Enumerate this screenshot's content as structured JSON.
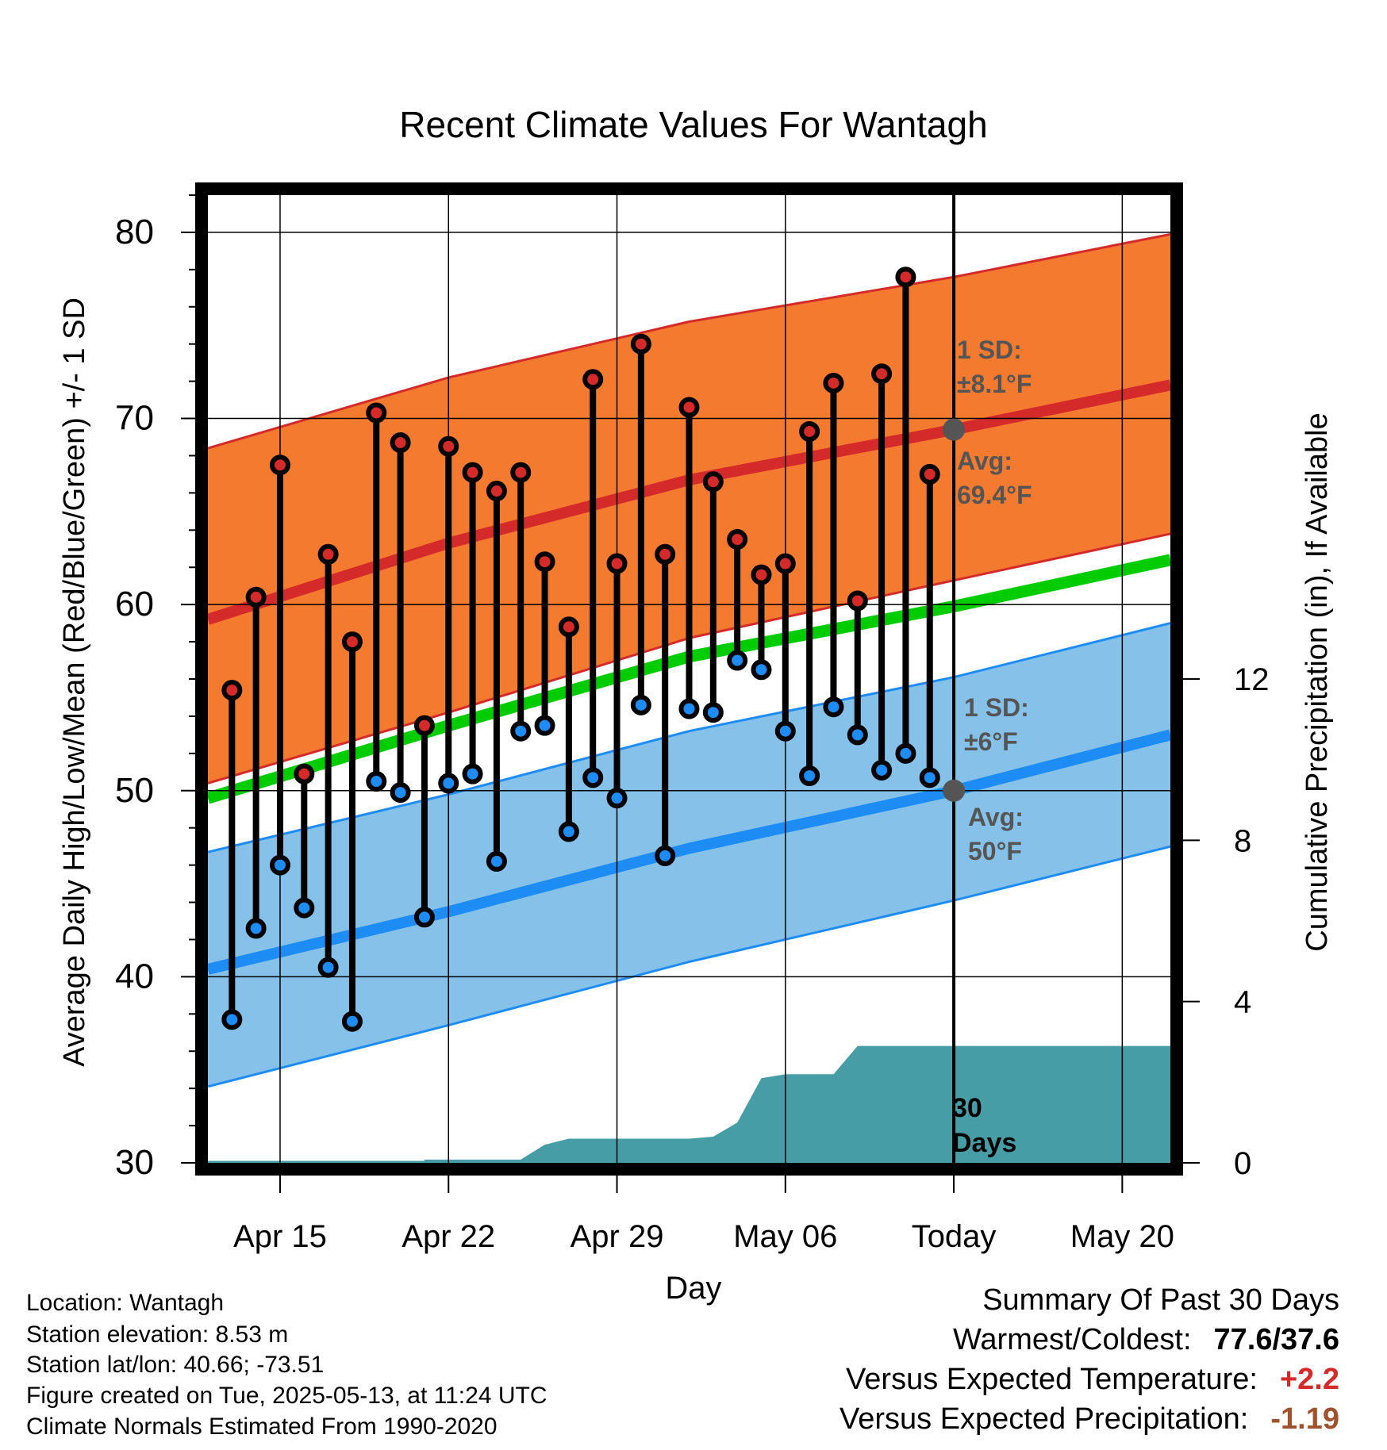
{
  "chart_data": {
    "type": "line",
    "title": "Recent Climate Values For Wantagh",
    "xlabel": "Day",
    "ylabel": "Average Daily High/Low/Mean (Red/Blue/Green) +/- 1 SD",
    "y2label": "Cumulative Precipitation (in), If Available",
    "ylim": [
      30,
      82
    ],
    "y2lim": [
      0,
      24
    ],
    "x_tick_labels": [
      "Apr 15",
      "Apr 22",
      "Apr 29",
      "May 06",
      "Today",
      "May 20"
    ],
    "x_tick_dates": [
      "2025-04-15",
      "2025-04-22",
      "2025-04-29",
      "2025-05-06",
      "2025-05-13",
      "2025-05-20"
    ],
    "y_ticks": [
      30,
      40,
      50,
      60,
      70,
      80
    ],
    "y2_ticks": [
      0,
      4,
      8,
      12
    ],
    "x_range": [
      "2025-04-12",
      "2025-05-22"
    ],
    "today": "2025-05-13",
    "grid": true,
    "colors": {
      "high_band": "#f47a30",
      "high_line": "#d42a2a",
      "low_band": "#85c1e8",
      "low_line": "#1e8cf5",
      "mean_line": "#00cc00",
      "precip": "#479da5",
      "high_dot": "#d42a2a",
      "low_dot": "#1e8cf5",
      "today_dot": "#555555",
      "annotation": "#555555"
    },
    "normals": {
      "dates": [
        "2025-04-12",
        "2025-04-22",
        "2025-05-02",
        "2025-05-13",
        "2025-05-22"
      ],
      "high_avg": [
        59.2,
        63.3,
        66.7,
        69.4,
        71.8
      ],
      "high_upper": [
        68.4,
        72.2,
        75.2,
        77.6,
        79.9
      ],
      "high_lower": [
        50.4,
        54.2,
        58.2,
        61.3,
        63.8
      ],
      "mean": [
        49.6,
        53.5,
        57.2,
        59.9,
        62.4
      ],
      "low_avg": [
        40.4,
        43.5,
        46.9,
        50.0,
        53.0
      ],
      "low_upper": [
        46.7,
        49.8,
        53.2,
        56.1,
        59.0
      ],
      "low_lower": [
        34.1,
        37.4,
        40.8,
        44.1,
        47.0
      ]
    },
    "series": [
      {
        "name": "High",
        "dates": [
          "2025-04-13",
          "2025-04-14",
          "2025-04-15",
          "2025-04-16",
          "2025-04-17",
          "2025-04-18",
          "2025-04-19",
          "2025-04-20",
          "2025-04-21",
          "2025-04-22",
          "2025-04-23",
          "2025-04-24",
          "2025-04-25",
          "2025-04-26",
          "2025-04-27",
          "2025-04-28",
          "2025-04-29",
          "2025-04-30",
          "2025-05-01",
          "2025-05-02",
          "2025-05-03",
          "2025-05-04",
          "2025-05-05",
          "2025-05-06",
          "2025-05-07",
          "2025-05-08",
          "2025-05-09",
          "2025-05-10",
          "2025-05-11",
          "2025-05-12"
        ],
        "values": [
          55.4,
          60.4,
          67.5,
          50.9,
          62.7,
          58.0,
          70.3,
          68.7,
          53.5,
          68.5,
          67.1,
          66.1,
          67.1,
          62.3,
          58.8,
          72.1,
          62.2,
          74.0,
          62.7,
          70.6,
          66.6,
          63.5,
          61.6,
          62.2,
          69.3,
          71.9,
          60.2,
          72.4,
          77.6,
          67.0
        ]
      },
      {
        "name": "Low",
        "dates": [
          "2025-04-13",
          "2025-04-14",
          "2025-04-15",
          "2025-04-16",
          "2025-04-17",
          "2025-04-18",
          "2025-04-19",
          "2025-04-20",
          "2025-04-21",
          "2025-04-22",
          "2025-04-23",
          "2025-04-24",
          "2025-04-25",
          "2025-04-26",
          "2025-04-27",
          "2025-04-28",
          "2025-04-29",
          "2025-04-30",
          "2025-05-01",
          "2025-05-02",
          "2025-05-03",
          "2025-05-04",
          "2025-05-05",
          "2025-05-06",
          "2025-05-07",
          "2025-05-08",
          "2025-05-09",
          "2025-05-10",
          "2025-05-11",
          "2025-05-12"
        ],
        "values": [
          37.7,
          42.6,
          46.0,
          43.7,
          40.5,
          37.6,
          50.5,
          49.9,
          43.2,
          50.4,
          50.9,
          46.2,
          53.2,
          53.5,
          47.8,
          50.7,
          49.6,
          54.6,
          46.5,
          54.4,
          54.2,
          57.0,
          56.5,
          53.2,
          50.8,
          54.5,
          53.0,
          51.1,
          52.0,
          50.7
        ]
      },
      {
        "name": "Cumulative Precipitation",
        "dates": [
          "2025-04-12",
          "2025-04-21",
          "2025-04-21",
          "2025-04-25",
          "2025-04-26",
          "2025-04-27",
          "2025-05-02",
          "2025-05-03",
          "2025-05-04",
          "2025-05-05",
          "2025-05-06",
          "2025-05-08",
          "2025-05-09",
          "2025-05-22"
        ],
        "values": [
          0.05,
          0.05,
          0.08,
          0.08,
          0.45,
          0.6,
          0.6,
          0.65,
          1.0,
          2.1,
          2.2,
          2.2,
          2.9,
          2.9
        ]
      }
    ],
    "annotations": {
      "high_sd": [
        "1 SD:",
        "±8.1°F"
      ],
      "high_avg": [
        "Avg:",
        "69.4°F"
      ],
      "low_sd": [
        "1 SD:",
        "±6°F"
      ],
      "low_avg": [
        "Avg:",
        "50°F"
      ],
      "days": [
        "30",
        "Days"
      ]
    }
  },
  "info": {
    "location": "Location: Wantagh",
    "elevation": "Station elevation: 8.53 m",
    "latlon": "Station lat/lon: 40.66; -73.51",
    "created": "Figure created on Tue, 2025-05-13, at 11:24 UTC",
    "normals": "Climate Normals Estimated From 1990-2020"
  },
  "summary": {
    "title": "Summary Of Past 30 Days",
    "warm_cold_label": "Warmest/Coldest:",
    "warm_cold_value": "77.6/37.6",
    "temp_label": "Versus Expected Temperature:",
    "temp_value": "+2.2",
    "temp_color": "#d42a2a",
    "precip_label": "Versus Expected Precipitation:",
    "precip_value": "-1.19",
    "precip_color": "#a0522d"
  }
}
